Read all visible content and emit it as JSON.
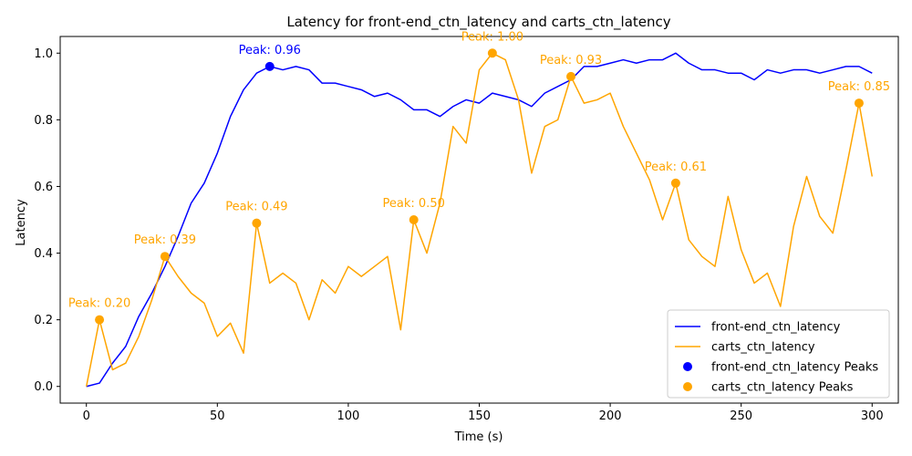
{
  "chart_data": {
    "type": "line",
    "title": "Latency for front-end_ctn_latency and carts_ctn_latency",
    "xlabel": "Time (s)",
    "ylabel": "Latency",
    "xlim": [
      -10,
      310
    ],
    "ylim": [
      -0.05,
      1.05
    ],
    "xticks": [
      0,
      50,
      100,
      150,
      200,
      250,
      300
    ],
    "yticks": [
      0.0,
      0.2,
      0.4,
      0.6,
      0.8,
      1.0
    ],
    "grid": false,
    "legend_position": "lower-right",
    "x": [
      0,
      5,
      10,
      15,
      20,
      25,
      30,
      35,
      40,
      45,
      50,
      55,
      60,
      65,
      70,
      75,
      80,
      85,
      90,
      95,
      100,
      105,
      110,
      115,
      120,
      125,
      130,
      135,
      140,
      145,
      150,
      155,
      160,
      165,
      170,
      175,
      180,
      185,
      190,
      195,
      200,
      205,
      210,
      215,
      220,
      225,
      230,
      235,
      240,
      245,
      250,
      255,
      260,
      265,
      270,
      275,
      280,
      285,
      290,
      295,
      300
    ],
    "series": [
      {
        "name": "front-end_ctn_latency",
        "color": "#0000ff",
        "values": [
          0.0,
          0.01,
          0.07,
          0.12,
          0.21,
          0.28,
          0.36,
          0.45,
          0.55,
          0.61,
          0.7,
          0.81,
          0.89,
          0.94,
          0.96,
          0.95,
          0.96,
          0.95,
          0.91,
          0.91,
          0.9,
          0.89,
          0.87,
          0.88,
          0.86,
          0.83,
          0.83,
          0.81,
          0.84,
          0.86,
          0.85,
          0.88,
          0.87,
          0.86,
          0.84,
          0.88,
          0.9,
          0.92,
          0.96,
          0.96,
          0.97,
          0.98,
          0.97,
          0.98,
          0.98,
          1.0,
          0.97,
          0.95,
          0.95,
          0.94,
          0.94,
          0.92,
          0.95,
          0.94,
          0.95,
          0.95,
          0.94,
          0.95,
          0.96,
          0.96,
          0.94
        ]
      },
      {
        "name": "carts_ctn_latency",
        "color": "#ffa500",
        "values": [
          0.0,
          0.2,
          0.05,
          0.07,
          0.15,
          0.26,
          0.39,
          0.33,
          0.28,
          0.25,
          0.15,
          0.19,
          0.1,
          0.49,
          0.31,
          0.34,
          0.31,
          0.2,
          0.32,
          0.28,
          0.36,
          0.33,
          0.36,
          0.39,
          0.17,
          0.5,
          0.4,
          0.55,
          0.78,
          0.73,
          0.95,
          1.0,
          0.98,
          0.86,
          0.64,
          0.78,
          0.8,
          0.93,
          0.85,
          0.86,
          0.88,
          0.78,
          0.7,
          0.62,
          0.5,
          0.61,
          0.44,
          0.39,
          0.36,
          0.57,
          0.41,
          0.31,
          0.34,
          0.24,
          0.48,
          0.63,
          0.51,
          0.46,
          0.65,
          0.85,
          0.63
        ]
      }
    ],
    "peaks": [
      {
        "series": "front-end_ctn_latency",
        "x": 70,
        "y": 0.96,
        "label": "Peak: 0.96",
        "color": "#0000ff"
      },
      {
        "series": "carts_ctn_latency",
        "x": 5,
        "y": 0.2,
        "label": "Peak: 0.20",
        "color": "#ffa500"
      },
      {
        "series": "carts_ctn_latency",
        "x": 30,
        "y": 0.39,
        "label": "Peak: 0.39",
        "color": "#ffa500"
      },
      {
        "series": "carts_ctn_latency",
        "x": 65,
        "y": 0.49,
        "label": "Peak: 0.49",
        "color": "#ffa500"
      },
      {
        "series": "carts_ctn_latency",
        "x": 125,
        "y": 0.5,
        "label": "Peak: 0.50",
        "color": "#ffa500"
      },
      {
        "series": "carts_ctn_latency",
        "x": 155,
        "y": 1.0,
        "label": "Peak: 1.00",
        "color": "#ffa500"
      },
      {
        "series": "carts_ctn_latency",
        "x": 185,
        "y": 0.93,
        "label": "Peak: 0.93",
        "color": "#ffa500"
      },
      {
        "series": "carts_ctn_latency",
        "x": 225,
        "y": 0.61,
        "label": "Peak: 0.61",
        "color": "#ffa500"
      },
      {
        "series": "carts_ctn_latency",
        "x": 295,
        "y": 0.85,
        "label": "Peak: 0.85",
        "color": "#ffa500"
      }
    ],
    "legend": [
      {
        "label": "front-end_ctn_latency",
        "kind": "line",
        "color": "#0000ff"
      },
      {
        "label": "carts_ctn_latency",
        "kind": "line",
        "color": "#ffa500"
      },
      {
        "label": "front-end_ctn_latency Peaks",
        "kind": "marker",
        "color": "#0000ff"
      },
      {
        "label": "carts_ctn_latency Peaks",
        "kind": "marker",
        "color": "#ffa500"
      }
    ]
  }
}
